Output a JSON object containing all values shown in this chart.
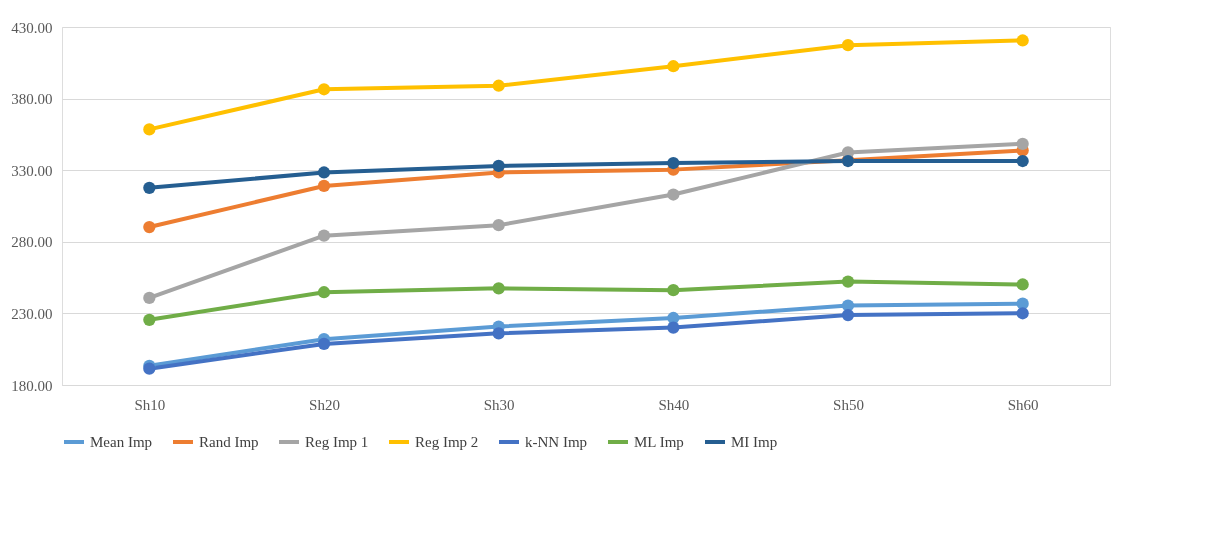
{
  "chart_data": {
    "type": "line",
    "categories": [
      "Sh10",
      "Sh20",
      "Sh30",
      "Sh40",
      "Sh50",
      "Sh60"
    ],
    "series": [
      {
        "name": "Mean Imp",
        "color": "#5b9bd5",
        "values": [
          193.4,
          212,
          220.8,
          226.8,
          235.5,
          236.8
        ]
      },
      {
        "name": "Rand Imp",
        "color": "#ed7d31",
        "values": [
          290.3,
          319,
          328.4,
          330.4,
          337,
          343.8
        ]
      },
      {
        "name": "Reg Imp 1",
        "color": "#a5a5a5",
        "values": [
          240.8,
          284.3,
          291.6,
          313,
          342.4,
          348.4
        ]
      },
      {
        "name": "Reg Imp 2",
        "color": "#ffc000",
        "values": [
          358.5,
          386.5,
          389,
          402.6,
          417.3,
          420.6
        ]
      },
      {
        "name": "k-NN Imp",
        "color": "#4472c4",
        "values": [
          191.4,
          208.7,
          216.1,
          220.1,
          228.8,
          230.1
        ]
      },
      {
        "name": "ML Imp",
        "color": "#70ad47",
        "values": [
          225.5,
          244.8,
          247.5,
          246.2,
          252.2,
          250.2
        ]
      },
      {
        "name": "MI Imp",
        "color": "#255e91",
        "values": [
          317.7,
          328.4,
          333,
          335,
          336.4,
          336.4
        ]
      }
    ],
    "ylim": [
      180,
      430
    ],
    "yticks": [
      {
        "value": 180,
        "label": "180.00"
      },
      {
        "value": 230,
        "label": "230.00"
      },
      {
        "value": 280,
        "label": "280.00"
      },
      {
        "value": 330,
        "label": "330.00"
      },
      {
        "value": 380,
        "label": "380.00"
      },
      {
        "value": 430,
        "label": "430.00"
      }
    ],
    "grid": "y",
    "legend": "bottom",
    "marker": "circle",
    "line_style": "solid"
  }
}
